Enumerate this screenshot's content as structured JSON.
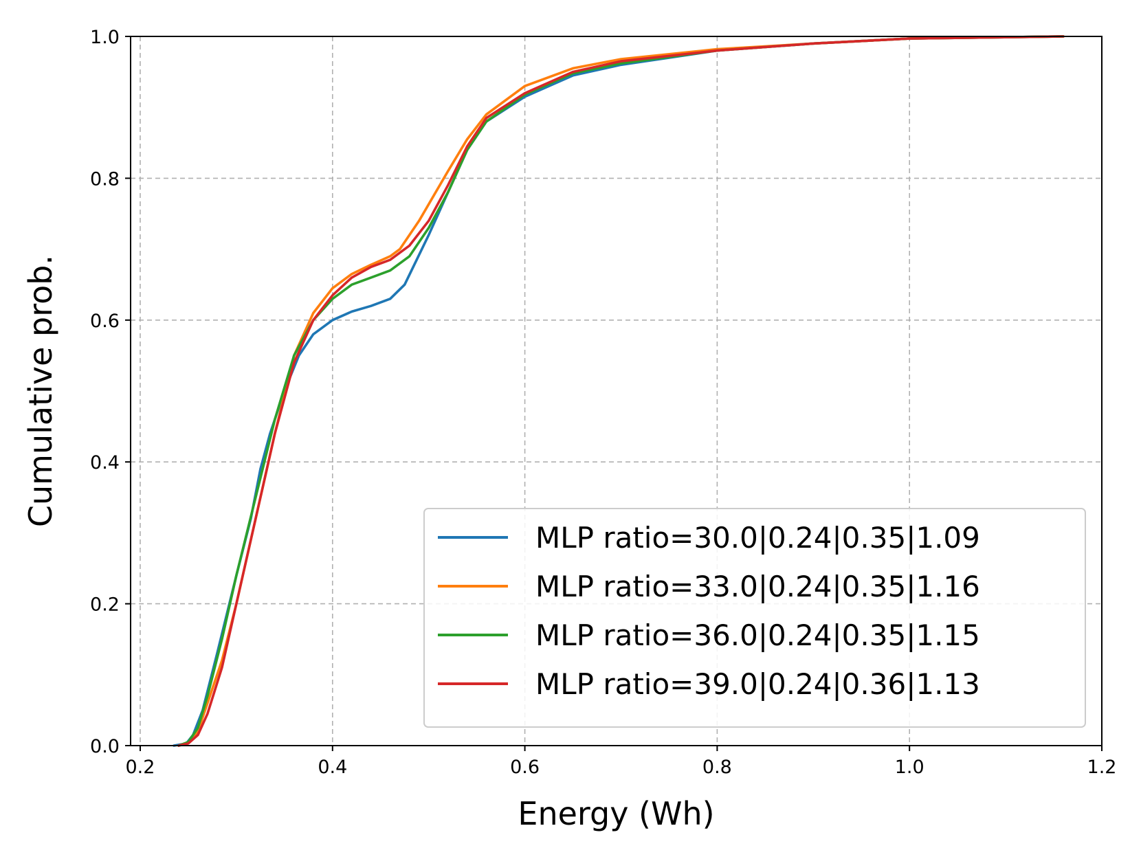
{
  "chart_data": {
    "type": "line",
    "title": "",
    "xlabel": "Energy (Wh)",
    "ylabel": "Cumulative prob.",
    "xlim": [
      0.19,
      1.2
    ],
    "ylim": [
      0.0,
      1.0
    ],
    "xticks": [
      0.2,
      0.4,
      0.6,
      0.8,
      1.0,
      1.2
    ],
    "xtick_labels": [
      "0.2",
      "0.4",
      "0.6",
      "0.8",
      "1.0",
      "1.2"
    ],
    "yticks": [
      0.0,
      0.2,
      0.4,
      0.6,
      0.8,
      1.0
    ],
    "ytick_labels": [
      "0.0",
      "0.2",
      "0.4",
      "0.6",
      "0.8",
      "1.0"
    ],
    "grid": true,
    "legend_position": "lower-right",
    "series": [
      {
        "name": "MLP ratio=30.0|0.24|0.35|1.09",
        "color": "#1f77b4",
        "x": [
          0.235,
          0.248,
          0.255,
          0.265,
          0.28,
          0.3,
          0.315,
          0.325,
          0.335,
          0.35,
          0.365,
          0.38,
          0.4,
          0.42,
          0.44,
          0.46,
          0.475,
          0.5,
          0.52,
          0.54,
          0.56,
          0.6,
          0.65,
          0.7,
          0.8,
          0.9,
          1.0,
          1.16
        ],
        "y": [
          0.0,
          0.003,
          0.015,
          0.05,
          0.13,
          0.24,
          0.32,
          0.39,
          0.44,
          0.5,
          0.55,
          0.58,
          0.6,
          0.612,
          0.62,
          0.63,
          0.65,
          0.72,
          0.78,
          0.84,
          0.88,
          0.915,
          0.945,
          0.96,
          0.98,
          0.99,
          0.997,
          1.0
        ]
      },
      {
        "name": "MLP ratio=33.0|0.24|0.35|1.16",
        "color": "#ff7f0e",
        "x": [
          0.24,
          0.25,
          0.26,
          0.27,
          0.285,
          0.3,
          0.32,
          0.34,
          0.36,
          0.38,
          0.4,
          0.42,
          0.44,
          0.46,
          0.47,
          0.49,
          0.52,
          0.54,
          0.56,
          0.6,
          0.65,
          0.7,
          0.8,
          0.9,
          1.0,
          1.16
        ],
        "y": [
          0.0,
          0.005,
          0.02,
          0.06,
          0.12,
          0.2,
          0.32,
          0.44,
          0.55,
          0.61,
          0.645,
          0.665,
          0.678,
          0.69,
          0.7,
          0.74,
          0.81,
          0.855,
          0.89,
          0.93,
          0.955,
          0.968,
          0.982,
          0.99,
          0.997,
          1.0
        ]
      },
      {
        "name": "MLP ratio=36.0|0.24|0.35|1.15",
        "color": "#2ca02c",
        "x": [
          0.24,
          0.25,
          0.26,
          0.27,
          0.285,
          0.3,
          0.32,
          0.34,
          0.36,
          0.38,
          0.4,
          0.42,
          0.44,
          0.46,
          0.48,
          0.5,
          0.52,
          0.54,
          0.56,
          0.6,
          0.65,
          0.7,
          0.8,
          0.9,
          1.0,
          1.16
        ],
        "y": [
          0.0,
          0.005,
          0.025,
          0.07,
          0.15,
          0.24,
          0.35,
          0.46,
          0.55,
          0.6,
          0.63,
          0.65,
          0.66,
          0.67,
          0.69,
          0.73,
          0.78,
          0.84,
          0.88,
          0.918,
          0.948,
          0.962,
          0.98,
          0.99,
          0.997,
          1.0
        ]
      },
      {
        "name": "MLP ratio=39.0|0.24|0.36|1.13",
        "color": "#d62728",
        "x": [
          0.24,
          0.25,
          0.26,
          0.27,
          0.285,
          0.3,
          0.32,
          0.34,
          0.36,
          0.38,
          0.4,
          0.42,
          0.44,
          0.46,
          0.48,
          0.5,
          0.52,
          0.54,
          0.56,
          0.6,
          0.65,
          0.7,
          0.8,
          0.9,
          1.0,
          1.16
        ],
        "y": [
          0.0,
          0.003,
          0.015,
          0.045,
          0.11,
          0.2,
          0.32,
          0.44,
          0.54,
          0.6,
          0.635,
          0.66,
          0.675,
          0.685,
          0.705,
          0.74,
          0.79,
          0.845,
          0.885,
          0.92,
          0.95,
          0.965,
          0.98,
          0.99,
          0.997,
          1.0
        ]
      }
    ]
  }
}
